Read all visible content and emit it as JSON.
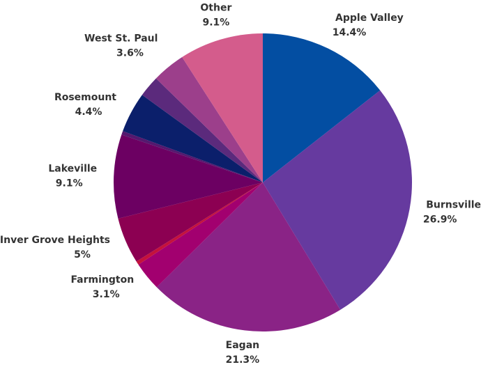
{
  "chart_data": {
    "type": "pie",
    "categories": [
      "Apple Valley",
      "Burnsville",
      "Eagan",
      "Farmington",
      null,
      "Inver Grove Heights",
      "Lakeville",
      null,
      "Rosemount",
      null,
      "West St. Paul",
      "Other"
    ],
    "values": [
      14.4,
      26.9,
      21.3,
      3.1,
      0.4,
      5,
      9.1,
      0.4,
      4.4,
      2.3,
      3.6,
      9.1
    ],
    "value_labels": [
      "14.4%",
      "26.9%",
      "21.3%",
      "3.1%",
      null,
      "5%",
      "9.1%",
      null,
      "4.4%",
      null,
      "3.6%",
      "9.1%"
    ],
    "colors": [
      "#034ea2",
      "#663a9f",
      "#8a2386",
      "#a2006f",
      "#c4123c",
      "#8c0052",
      "#6c0062",
      "#54186e",
      "#0b1f6b",
      "#5b2a7c",
      "#9c3f8b",
      "#d45c8c"
    ]
  }
}
